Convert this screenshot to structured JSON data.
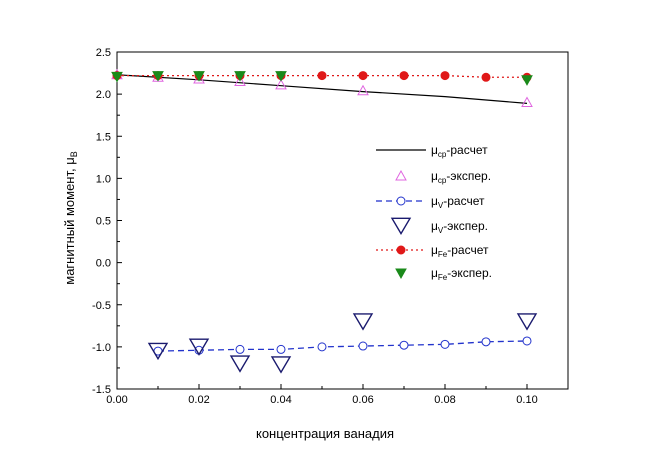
{
  "chart_data": {
    "type": "line",
    "title": "",
    "xlabel": "концентрация ванадия",
    "ylabel_main": "магнитный момент, μ",
    "ylabel_sub": "B",
    "xlim": [
      0.0,
      0.11
    ],
    "ylim": [
      -1.5,
      2.5
    ],
    "xticks": [
      {
        "value": 0.0,
        "label": "0.00"
      },
      {
        "value": 0.02,
        "label": "0.02"
      },
      {
        "value": 0.04,
        "label": "0.04"
      },
      {
        "value": 0.06,
        "label": "0.06"
      },
      {
        "value": 0.08,
        "label": "0.08"
      },
      {
        "value": 0.1,
        "label": "0.10"
      }
    ],
    "yticks": [
      {
        "value": 2.5,
        "label": "2.5"
      },
      {
        "value": 2.0,
        "label": "2.0"
      },
      {
        "value": 1.5,
        "label": "1.5"
      },
      {
        "value": 1.0,
        "label": "1.0"
      },
      {
        "value": 0.5,
        "label": "0.5"
      },
      {
        "value": 0.0,
        "label": "0.0"
      },
      {
        "value": -0.5,
        "label": "-0.5"
      },
      {
        "value": -1.0,
        "label": "-1.0"
      },
      {
        "value": -1.5,
        "label": "-1.5"
      }
    ],
    "series": [
      {
        "id": "mu-cp-calc",
        "name_main": "μ",
        "name_sub": "cp",
        "name_rest": "-расчет",
        "style": "line",
        "color": "#000000",
        "x": [
          0.0,
          0.02,
          0.04,
          0.06,
          0.08,
          0.1
        ],
        "y": [
          2.23,
          2.17,
          2.1,
          2.03,
          1.97,
          1.89
        ]
      },
      {
        "id": "mu-cp-exp",
        "name_main": "μ",
        "name_sub": "cp",
        "name_rest": "-экспер.",
        "style": "triangle-up-open",
        "color": "#e066e0",
        "x": [
          0.0,
          0.01,
          0.02,
          0.03,
          0.04,
          0.06,
          0.1
        ],
        "y": [
          2.23,
          2.2,
          2.18,
          2.15,
          2.11,
          2.04,
          1.9
        ]
      },
      {
        "id": "mu-v-calc",
        "name_main": "μ",
        "name_sub": "V",
        "name_rest": "-расчет",
        "style": "dashed-circle-open",
        "color": "#2233cc",
        "x": [
          0.01,
          0.02,
          0.03,
          0.04,
          0.05,
          0.06,
          0.07,
          0.08,
          0.09,
          0.1
        ],
        "y": [
          -1.05,
          -1.04,
          -1.03,
          -1.03,
          -1.0,
          -0.99,
          -0.98,
          -0.97,
          -0.94,
          -0.93
        ]
      },
      {
        "id": "mu-v-exp",
        "name_main": "μ",
        "name_sub": "V",
        "name_rest": "-экспер.",
        "style": "triangle-down-open",
        "color": "#1a1a6e",
        "x": [
          0.01,
          0.02,
          0.03,
          0.04,
          0.06,
          0.1
        ],
        "y": [
          -1.05,
          -1.0,
          -1.2,
          -1.21,
          -0.7,
          -0.7
        ]
      },
      {
        "id": "mu-fe-calc",
        "name_main": "μ",
        "name_sub": "Fe",
        "name_rest": "-расчет",
        "style": "dotted-circle-filled",
        "color": "#e01818",
        "x": [
          0.0,
          0.01,
          0.02,
          0.03,
          0.04,
          0.05,
          0.06,
          0.07,
          0.08,
          0.09,
          0.1
        ],
        "y": [
          2.22,
          2.22,
          2.22,
          2.22,
          2.22,
          2.22,
          2.22,
          2.22,
          2.22,
          2.2,
          2.2
        ]
      },
      {
        "id": "mu-fe-exp",
        "name_main": "μ",
        "name_sub": "Fe",
        "name_rest": "-экспер.",
        "style": "triangle-down-filled",
        "color": "#1a8a1a",
        "x": [
          0.0,
          0.01,
          0.02,
          0.03,
          0.04,
          0.1
        ],
        "y": [
          2.21,
          2.22,
          2.22,
          2.22,
          2.22,
          2.17
        ]
      }
    ]
  }
}
